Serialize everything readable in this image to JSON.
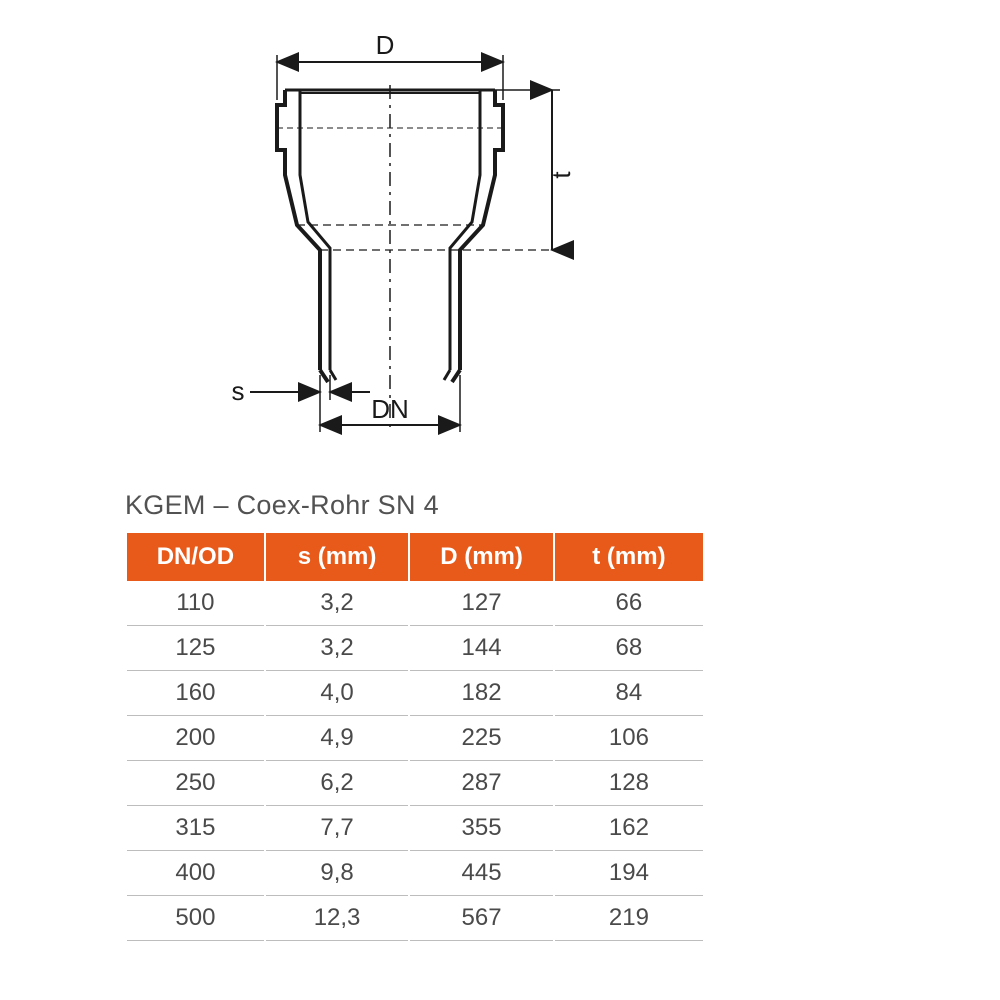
{
  "diagram": {
    "labels": {
      "D": "D",
      "t": "t",
      "s": "s",
      "DN": "DN"
    },
    "stroke_color": "#1a1a1a",
    "stroke_width_main": 4,
    "stroke_width_dim": 2,
    "dash_pattern": "12 6 3 6"
  },
  "table": {
    "title": "KGEM – Coex-Rohr SN 4",
    "header_bg": "#e85a1a",
    "header_color": "#ffffff",
    "row_border_color": "#bdbdbd",
    "text_color": "#4a4a4a",
    "columns": [
      "DN/OD",
      "s (mm)",
      "D (mm)",
      "t (mm)"
    ],
    "rows": [
      [
        "110",
        "3,2",
        "127",
        "66"
      ],
      [
        "125",
        "3,2",
        "144",
        "68"
      ],
      [
        "160",
        "4,0",
        "182",
        "84"
      ],
      [
        "200",
        "4,9",
        "225",
        "106"
      ],
      [
        "250",
        "6,2",
        "287",
        "128"
      ],
      [
        "315",
        "7,7",
        "355",
        "162"
      ],
      [
        "400",
        "9,8",
        "445",
        "194"
      ],
      [
        "500",
        "12,3",
        "567",
        "219"
      ]
    ]
  }
}
